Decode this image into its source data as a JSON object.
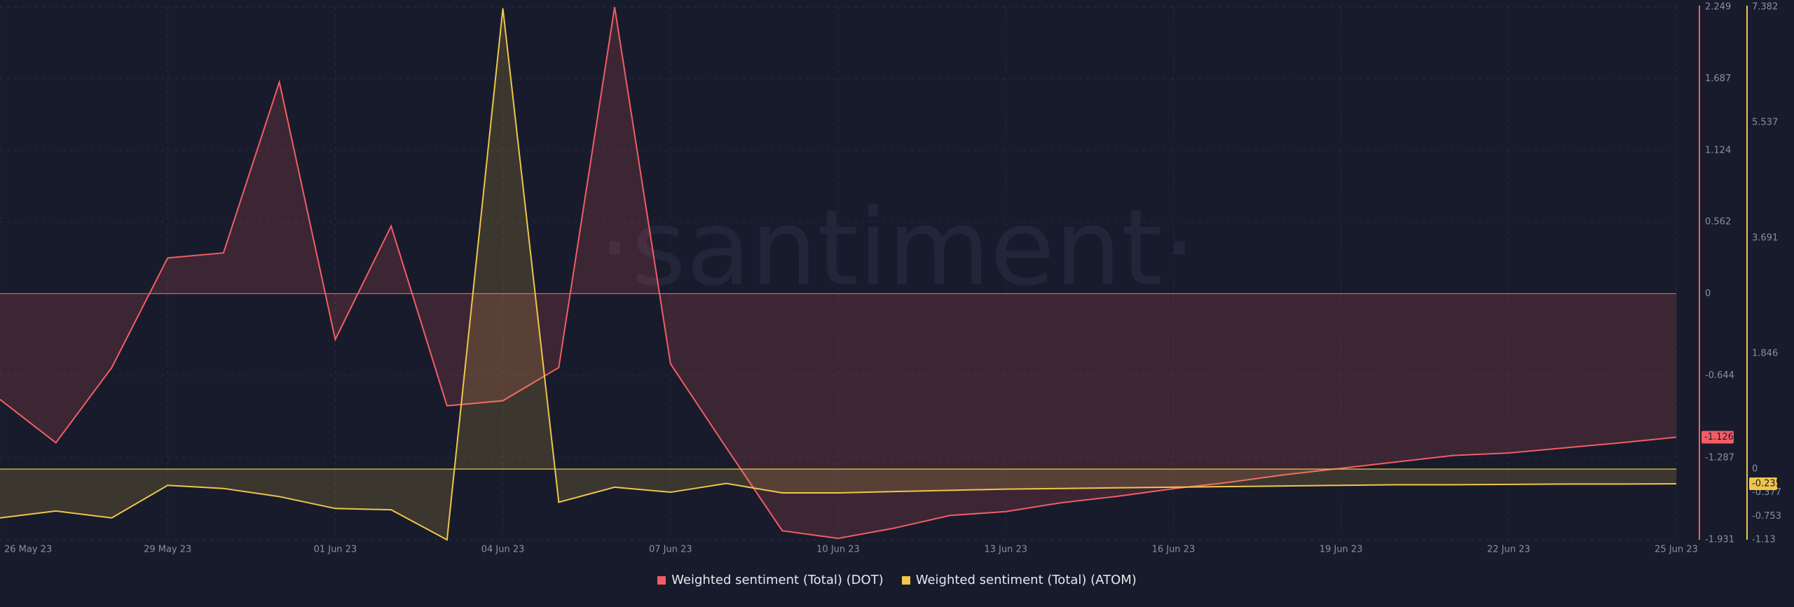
{
  "chart_data": {
    "type": "area",
    "watermark": "·santiment·",
    "categories": [
      "26 May 23",
      null,
      null,
      "29 May 23",
      null,
      null,
      "01 Jun 23",
      null,
      null,
      "04 Jun 23",
      null,
      null,
      "07 Jun 23",
      null,
      null,
      "10 Jun 23",
      null,
      null,
      "13 Jun 23",
      null,
      null,
      "16 Jun 23",
      null,
      null,
      "19 Jun 23",
      null,
      null,
      "22 Jun 23",
      null,
      null,
      "25 Jun 23"
    ],
    "series": [
      {
        "name": "Weighted sentiment (Total) (DOT)",
        "color": "#f25d64",
        "axis": "y",
        "values": [
          -0.83,
          -1.17,
          -0.58,
          0.28,
          0.32,
          1.66,
          -0.36,
          0.53,
          -0.88,
          -0.84,
          -0.58,
          2.249,
          -0.55,
          -1.21,
          -1.86,
          -1.92,
          -1.84,
          -1.74,
          -1.71,
          -1.64,
          -1.59,
          -1.53,
          -1.48,
          -1.42,
          -1.37,
          -1.32,
          -1.27,
          -1.25,
          -1.21,
          -1.17,
          -1.126
        ]
      },
      {
        "name": "Weighted sentiment (Total) (ATOM)",
        "color": "#f0c54a",
        "axis": "y2",
        "values": [
          -0.78,
          -0.67,
          -0.78,
          -0.26,
          -0.31,
          -0.44,
          -0.63,
          -0.65,
          -1.13,
          7.36,
          -0.53,
          -0.29,
          -0.37,
          -0.23,
          -0.38,
          -0.38,
          -0.36,
          -0.34,
          -0.32,
          -0.31,
          -0.3,
          -0.29,
          -0.28,
          -0.27,
          -0.26,
          -0.25,
          -0.25,
          -0.245,
          -0.24,
          -0.24,
          -0.235
        ]
      }
    ],
    "ylim": [
      -1.931,
      2.249
    ],
    "yticks": [
      2.249,
      1.687,
      1.124,
      0.562,
      0,
      -0.644,
      -1.287,
      -1.931
    ],
    "y2lim": [
      -1.13,
      7.382
    ],
    "y2ticks": [
      7.382,
      5.537,
      3.691,
      1.846,
      0,
      -0.377,
      -0.753,
      -1.13
    ],
    "grid": true,
    "legend": "bottom"
  }
}
